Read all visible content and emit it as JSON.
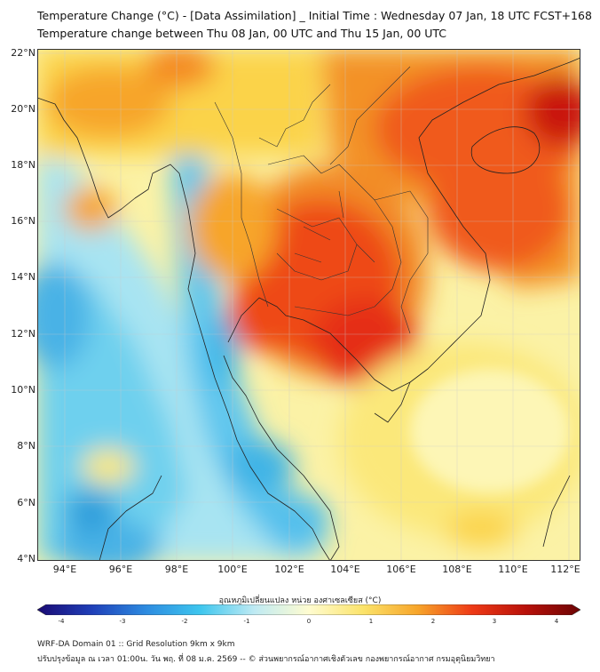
{
  "title_line1": "Temperature Change (°C) - [Data Assimilation] _ Initial Time : Wednesday 07 Jan, 18 UTC FCST+168",
  "title_line2": "Temperature change between Thu 08 Jan, 00 UTC and Thu 15 Jan, 00 UTC",
  "lat_labels": [
    "22°N",
    "20°N",
    "18°N",
    "16°N",
    "14°N",
    "12°N",
    "10°N",
    "8°N",
    "6°N",
    "4°N"
  ],
  "lon_labels": [
    "94°E",
    "96°E",
    "98°E",
    "100°E",
    "102°E",
    "104°E",
    "106°E",
    "108°E",
    "110°E",
    "112°E"
  ],
  "colorbar": {
    "title": "อุณหภูมิเปลี่ยนแปลง หน่วย องศาเซลเซียส (°C)",
    "ticks": [
      "-4",
      "-3",
      "-2",
      "-1",
      "0",
      "1",
      "2",
      "3",
      "4"
    ],
    "colors": [
      "#1a0a73",
      "#1f3fb8",
      "#2d8be0",
      "#3ec6ee",
      "#bfeaf3",
      "#fffcd0",
      "#fbe36a",
      "#f7a52a",
      "#ee3a16",
      "#b8110a",
      "#6b0404"
    ]
  },
  "footer_line1": "WRF-DA Domain 01 :: Grid Resolution 9km x 9km",
  "footer_line2": "ปรับปรุงข้อมูล ณ เวลา 01:00น. วัน พฤ. ที่ 08 ม.ค. 2569 -- © ส่วนพยากรณ์อากาศเชิงตัวเลข กองพยากรณ์อากาศ กรมอุตุนิยมวิทยา"
}
